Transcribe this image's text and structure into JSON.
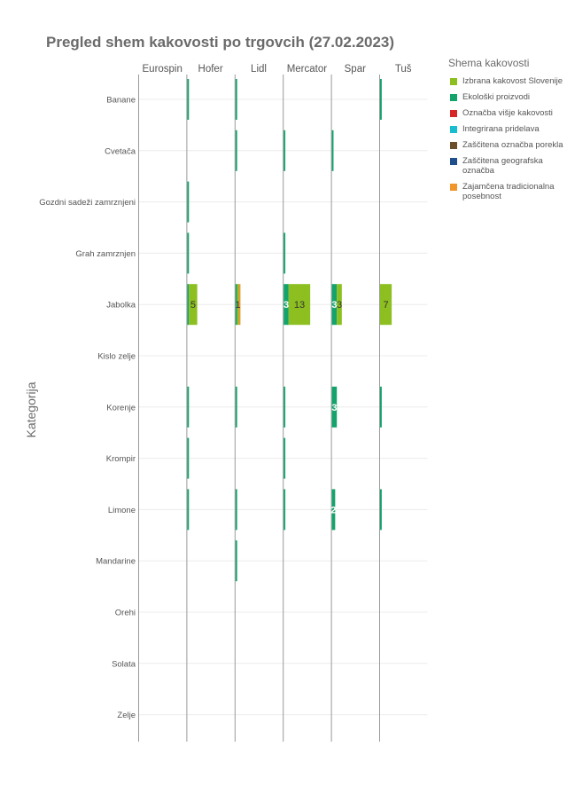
{
  "chart_data": {
    "type": "bar",
    "title": "Pregled shem kakovosti po trgovcih (27.02.2023)",
    "ylabel": "Kategorija",
    "legend_title": "Shema kakovosti",
    "legend_position": "right",
    "grid": true,
    "retailers": [
      "Eurospin",
      "Hofer",
      "Lidl",
      "Mercator",
      "Spar",
      "Tuš"
    ],
    "categories": [
      "Banane",
      "Cvetača",
      "Gozdni sadeži zamrznjeni",
      "Grah zamrznjen",
      "Jabolka",
      "Kislo zelje",
      "Korenje",
      "Krompir",
      "Limone",
      "Mandarine",
      "Orehi",
      "Solata",
      "Zelje"
    ],
    "series": [
      {
        "name": "Izbrana kakovost Slovenije",
        "color": "#8cbf1f",
        "values": {
          "Hofer": {
            "Jabolka": 5
          },
          "Lidl": {
            "Jabolka": 1
          },
          "Mercator": {
            "Jabolka": 13
          },
          "Spar": {
            "Jabolka": 3
          },
          "Tuš": {
            "Jabolka": 7
          }
        }
      },
      {
        "name": "Ekološki proizvodi",
        "color": "#13a36b",
        "values": {
          "Hofer": {
            "Banane": 1,
            "Gozdni sadeži zamrznjeni": 1,
            "Grah zamrznjen": 1,
            "Jabolka": 1,
            "Korenje": 1,
            "Krompir": 1,
            "Limone": 1
          },
          "Lidl": {
            "Banane": 1,
            "Cvetača": 1,
            "Jabolka": 1,
            "Korenje": 1,
            "Limone": 1,
            "Mandarine": 1
          },
          "Mercator": {
            "Cvetača": 1,
            "Grah zamrznjen": 1,
            "Jabolka": 3,
            "Korenje": 1,
            "Krompir": 1,
            "Limone": 1
          },
          "Spar": {
            "Cvetača": 1,
            "Jabolka": 3,
            "Korenje": 3,
            "Limone": 2
          },
          "Tuš": {
            "Banane": 1,
            "Korenje": 1,
            "Limone": 1
          }
        }
      },
      {
        "name": "Označba višje kakovosti",
        "color": "#d62728",
        "values": {}
      },
      {
        "name": "Integrirana pridelava",
        "color": "#17becf",
        "values": {}
      },
      {
        "name": "Zaščitena označba porekla",
        "color": "#6b4f2a",
        "values": {}
      },
      {
        "name": "Zaščitena geografska označba",
        "color": "#1f4e8c",
        "values": {}
      },
      {
        "name": "Zajamčena tradicionalna posebnost",
        "color": "#f0962b",
        "values": {
          "Lidl": {
            "Jabolka": 1
          }
        }
      }
    ],
    "data_labels": [
      {
        "retailer": "Hofer",
        "category": "Jabolka",
        "series": "Izbrana kakovost Slovenije",
        "text": "5"
      },
      {
        "retailer": "Lidl",
        "category": "Jabolka",
        "series": "Izbrana kakovost Slovenije",
        "text": "1"
      },
      {
        "retailer": "Mercator",
        "category": "Jabolka",
        "series": "Ekološki proizvodi",
        "text": "3"
      },
      {
        "retailer": "Mercator",
        "category": "Jabolka",
        "series": "Izbrana kakovost Slovenije",
        "text": "13"
      },
      {
        "retailer": "Spar",
        "category": "Jabolka",
        "series": "Ekološki proizvodi",
        "text": "3"
      },
      {
        "retailer": "Spar",
        "category": "Jabolka",
        "series": "Izbrana kakovost Slovenije",
        "text": "3"
      },
      {
        "retailer": "Spar",
        "category": "Korenje",
        "series": "Ekološki proizvodi",
        "text": "3"
      },
      {
        "retailer": "Spar",
        "category": "Limone",
        "series": "Ekološki proizvodi",
        "text": "2"
      },
      {
        "retailer": "Tuš",
        "category": "Jabolka",
        "series": "Izbrana kakovost Slovenije",
        "text": "7"
      }
    ],
    "xlim": [
      0,
      28
    ]
  }
}
